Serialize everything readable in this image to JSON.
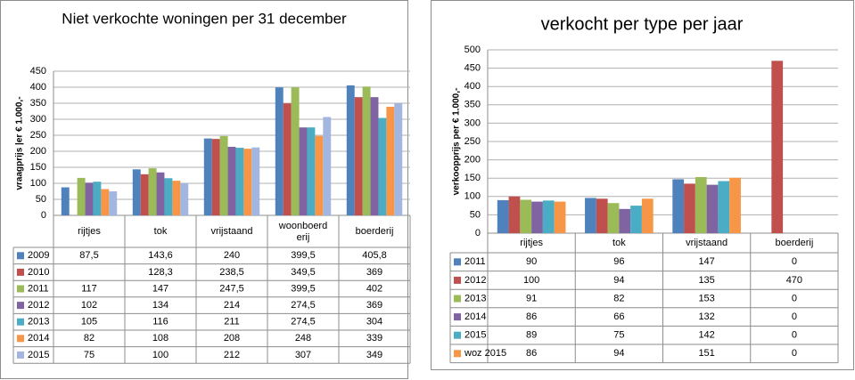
{
  "chart_data": [
    {
      "type": "bar",
      "title": "Niet verkochte woningen per 31 december",
      "y_label": "vraagprijs |er € 1.000,-",
      "categories": [
        "rijtjes",
        "tok",
        "vrijstaand",
        "woonboerderij",
        "boerderij"
      ],
      "ylim": [
        0,
        450
      ],
      "yticks": [
        0,
        50,
        100,
        150,
        200,
        250,
        300,
        350,
        400,
        450
      ],
      "grid": true,
      "series": [
        {
          "name": "2009",
          "color": "#4f81bd",
          "values": [
            87.5,
            143.6,
            240,
            399.5,
            405.8
          ],
          "value_labels": [
            "87,5",
            "143,6",
            "240",
            "399,5",
            "405,8"
          ]
        },
        {
          "name": "2010",
          "color": "#c0504d",
          "values": [
            null,
            128.3,
            238.5,
            349.5,
            369
          ],
          "value_labels": [
            null,
            "128,3",
            "238,5",
            "349,5",
            "369"
          ]
        },
        {
          "name": "2011",
          "color": "#9bbb59",
          "values": [
            117,
            147,
            247.5,
            399.5,
            402
          ],
          "value_labels": [
            "117",
            "147",
            "247,5",
            "399,5",
            "402"
          ]
        },
        {
          "name": "2012",
          "color": "#8064a2",
          "values": [
            102,
            134,
            214,
            274.5,
            369
          ],
          "value_labels": [
            "102",
            "134",
            "214",
            "274,5",
            "369"
          ]
        },
        {
          "name": "2013",
          "color": "#4bacc6",
          "values": [
            105,
            116,
            211,
            274.5,
            304
          ],
          "value_labels": [
            "105",
            "116",
            "211",
            "274,5",
            "304"
          ]
        },
        {
          "name": "2014",
          "color": "#f79646",
          "values": [
            82,
            108,
            208,
            248,
            339
          ]
        },
        {
          "name": "2015",
          "color": "#a3b6e0",
          "values": [
            75,
            100,
            212,
            307,
            349
          ]
        }
      ]
    },
    {
      "type": "bar",
      "title": "verkocht per type per jaar",
      "y_label": "verkoopprijs per € 1.000,-",
      "categories": [
        "rijtjes",
        "tok",
        "vrijstaand",
        "boerderij"
      ],
      "ylim": [
        0,
        500
      ],
      "yticks": [
        0,
        50,
        100,
        150,
        200,
        250,
        300,
        350,
        400,
        450,
        500
      ],
      "grid": true,
      "series": [
        {
          "name": "2011",
          "color": "#4f81bd",
          "values": [
            90,
            96,
            147,
            0
          ]
        },
        {
          "name": "2012",
          "color": "#c0504d",
          "values": [
            100,
            94,
            135,
            470
          ]
        },
        {
          "name": "2013",
          "color": "#9bbb59",
          "values": [
            91,
            82,
            153,
            0
          ]
        },
        {
          "name": "2014",
          "color": "#8064a2",
          "values": [
            86,
            66,
            132,
            0
          ]
        },
        {
          "name": "2015",
          "color": "#4bacc6",
          "values": [
            89,
            75,
            142,
            0
          ]
        },
        {
          "name": "woz 2015",
          "color": "#f79646",
          "values": [
            86,
            94,
            151,
            0
          ]
        }
      ]
    }
  ]
}
